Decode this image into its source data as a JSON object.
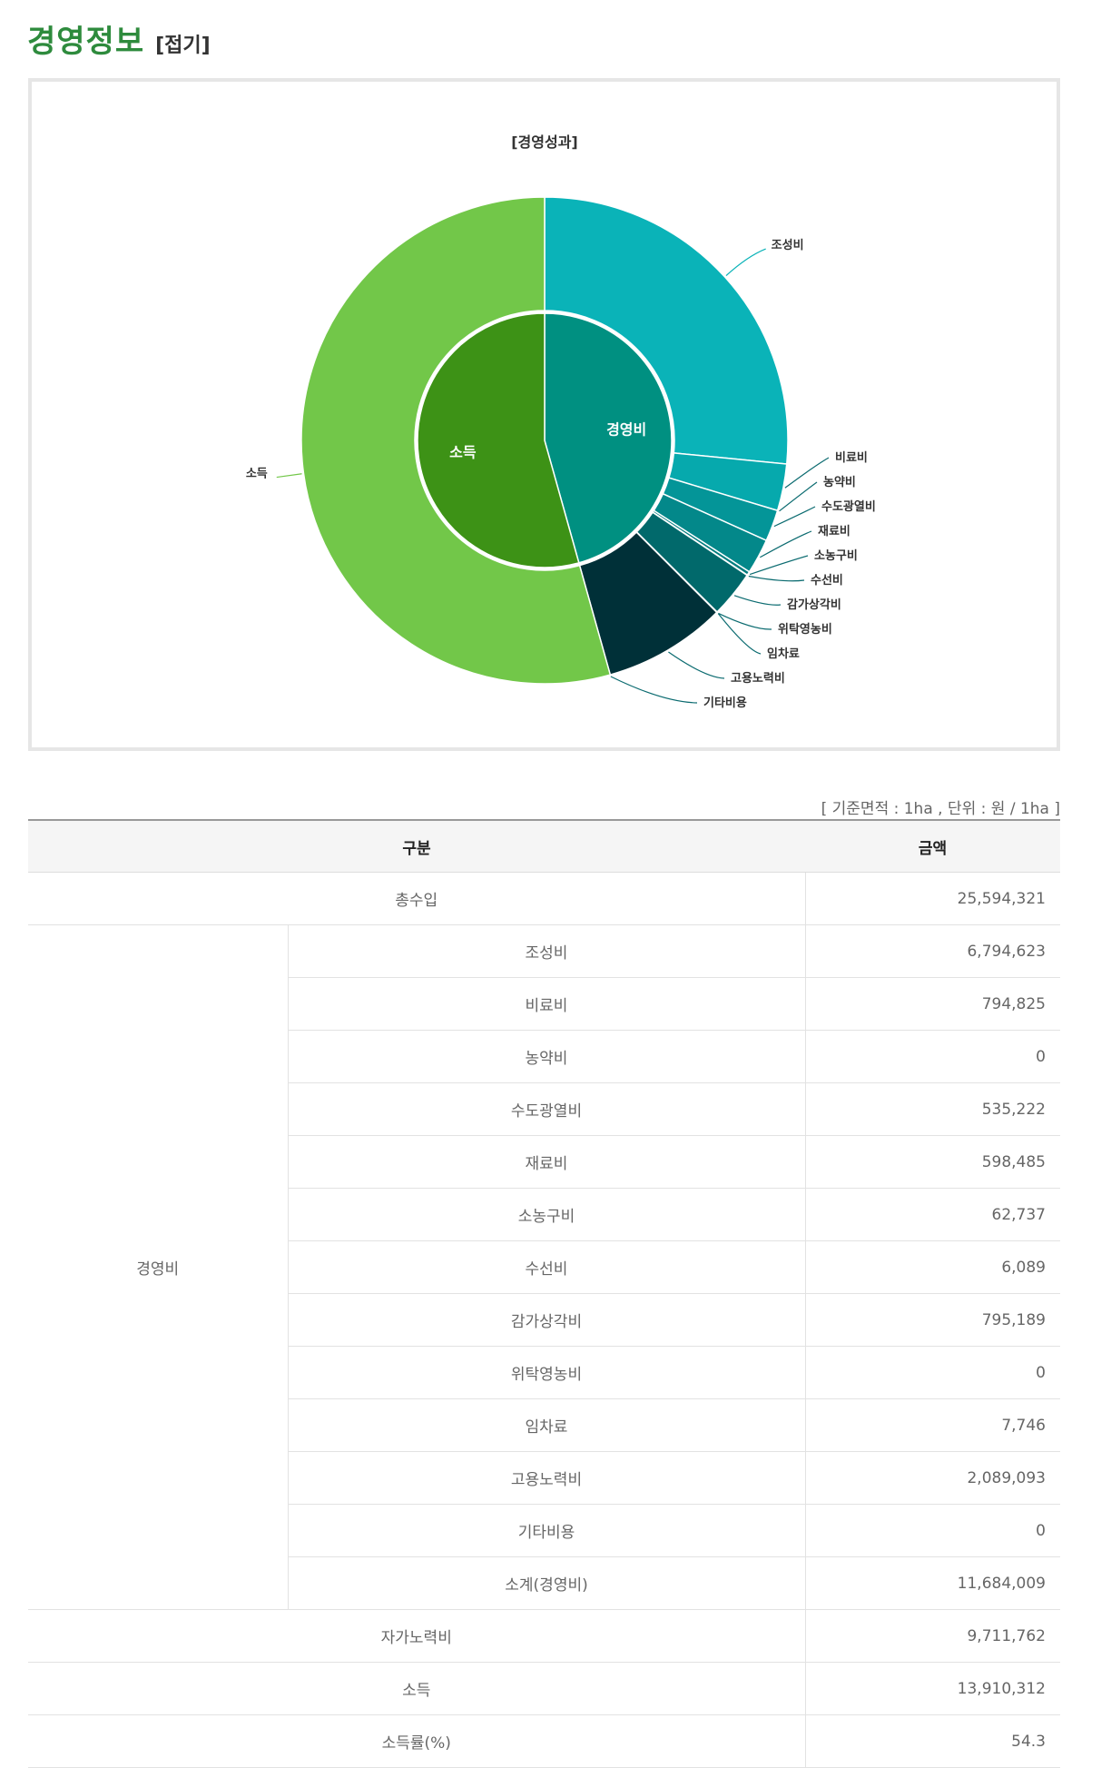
{
  "header": {
    "title": "경영정보",
    "toggle_label": "[접기]"
  },
  "chart_data": {
    "type": "pie",
    "title": "[경영성과]",
    "inner_ring": [
      {
        "label": "경영비",
        "value": 11684009,
        "color": "#009081"
      },
      {
        "label": "소득",
        "value": 13910312,
        "color": "#3d9216"
      }
    ],
    "outer_ring": [
      {
        "label": "조성비",
        "value": 6794623,
        "color": "#0ab3b8"
      },
      {
        "label": "비료비",
        "value": 794825,
        "color": "#06a9ad"
      },
      {
        "label": "농약비",
        "value": 0,
        "color": "#05a0a3"
      },
      {
        "label": "수도광열비",
        "value": 535222,
        "color": "#049598"
      },
      {
        "label": "재료비",
        "value": 598485,
        "color": "#03888a"
      },
      {
        "label": "소농구비",
        "value": 62737,
        "color": "#027d7f"
      },
      {
        "label": "수선비",
        "value": 6089,
        "color": "#027477"
      },
      {
        "label": "감가상각비",
        "value": 795189,
        "color": "#01696b"
      },
      {
        "label": "위탁영농비",
        "value": 0,
        "color": "#015f61"
      },
      {
        "label": "임차료",
        "value": 7746,
        "color": "#015557"
      },
      {
        "label": "고용노력비",
        "value": 2089093,
        "color": "#003038"
      },
      {
        "label": "기타비용",
        "value": 0,
        "color": "#002a30"
      },
      {
        "label": "소득",
        "value": 13910312,
        "color": "#72c749"
      }
    ]
  },
  "table": {
    "unit_note": "[ 기준면적 : 1ha , 단위 : 원 / 1ha ]",
    "headers": {
      "category": "구분",
      "amount": "금액"
    },
    "total_revenue": {
      "label": "총수입",
      "value": "25,594,321"
    },
    "expense_group_label": "경영비",
    "expense_rows": [
      {
        "label": "조성비",
        "value": "6,794,623"
      },
      {
        "label": "비료비",
        "value": "794,825"
      },
      {
        "label": "농약비",
        "value": "0"
      },
      {
        "label": "수도광열비",
        "value": "535,222"
      },
      {
        "label": "재료비",
        "value": "598,485"
      },
      {
        "label": "소농구비",
        "value": "62,737"
      },
      {
        "label": "수선비",
        "value": "6,089"
      },
      {
        "label": "감가상각비",
        "value": "795,189"
      },
      {
        "label": "위탁영농비",
        "value": "0"
      },
      {
        "label": "임차료",
        "value": "7,746"
      },
      {
        "label": "고용노력비",
        "value": "2,089,093"
      },
      {
        "label": "기타비용",
        "value": "0"
      },
      {
        "label": "소계(경영비)",
        "value": "11,684,009"
      }
    ],
    "bottom_rows": [
      {
        "label": "자가노력비",
        "value": "9,711,762"
      },
      {
        "label": "소득",
        "value": "13,910,312"
      },
      {
        "label": "소득률(%)",
        "value": "54.3"
      }
    ]
  }
}
